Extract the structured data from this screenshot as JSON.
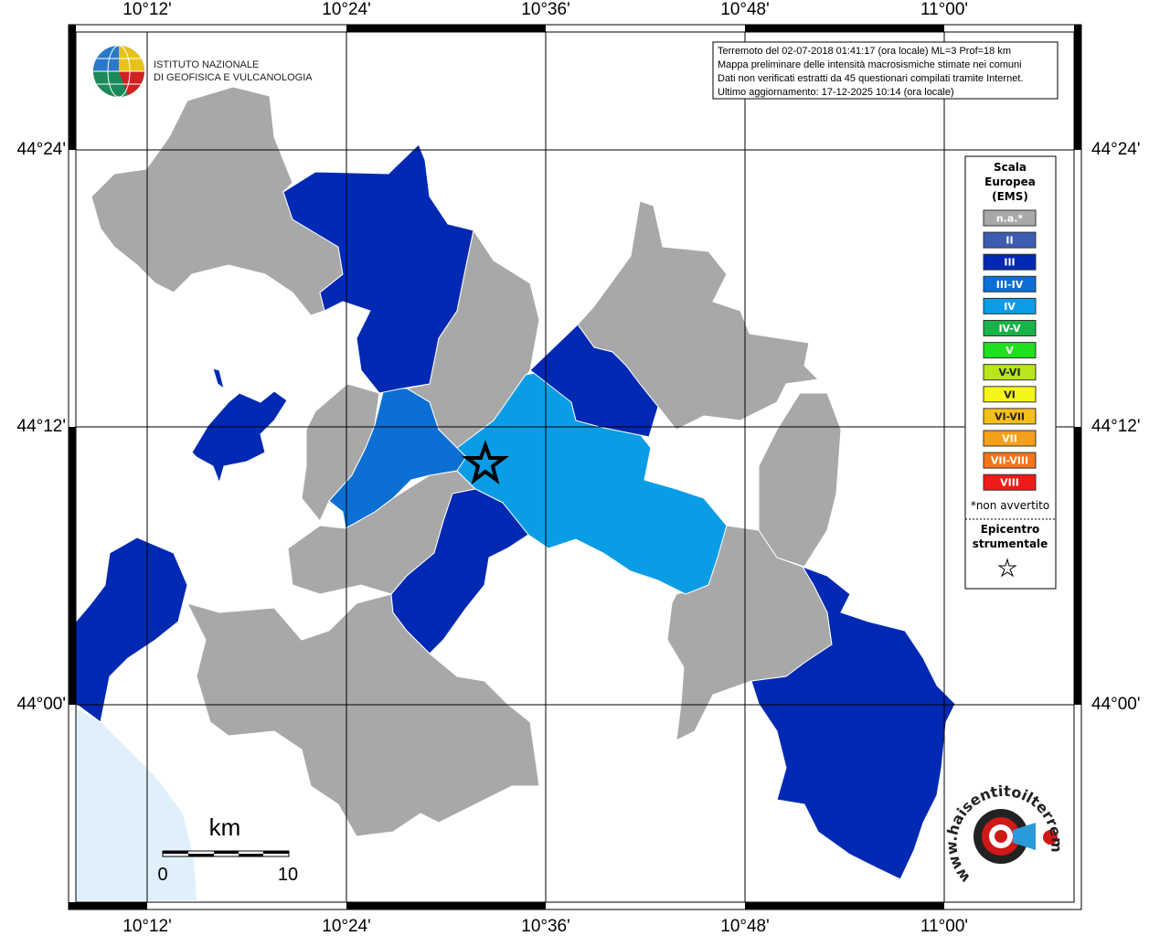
{
  "map": {
    "lon_labels": [
      "10°12'",
      "10°24'",
      "10°36'",
      "10°48'",
      "11°00'"
    ],
    "lat_labels": [
      "44°24'",
      "44°12'",
      "44°00'"
    ],
    "info_lines": [
      "Terremoto del 02-07-2018 01:41:17 (ora locale) ML=3 Prof=18 km",
      "Mappa preliminare delle intensità macrosismiche stimate nei comuni",
      "Dati non verificati estratti da 45 questionari compilati tramite Internet.",
      "Ultimo aggiornamento: 17-12-2025 10:14 (ora locale)"
    ],
    "logo": [
      "ISTITUTO NAZIONALE",
      "DI GEOFISICA E VULCANOLOGIA"
    ],
    "legend": {
      "title": [
        "Scala",
        "Europea",
        "(EMS)"
      ],
      "items": [
        {
          "label": "n.a.*",
          "color": "#a8a8a8"
        },
        {
          "label": "II",
          "color": "#3b5cb0"
        },
        {
          "label": "III",
          "color": "#0029b3"
        },
        {
          "label": "III-IV",
          "color": "#0b6fd4"
        },
        {
          "label": "IV",
          "color": "#0a9de6"
        },
        {
          "label": "IV-V",
          "color": "#19b34a"
        },
        {
          "label": "V",
          "color": "#1fe01f"
        },
        {
          "label": "V-VI",
          "color": "#b7e61a"
        },
        {
          "label": "VI",
          "color": "#f5f51a"
        },
        {
          "label": "VI-VII",
          "color": "#f5bf1a"
        },
        {
          "label": "VII",
          "color": "#f5a01a"
        },
        {
          "label": "VII-VIII",
          "color": "#f5741a"
        },
        {
          "label": "VIII",
          "color": "#f01a1a"
        }
      ],
      "note": "*non avvertito",
      "epicenter": [
        "Epicentro",
        "strumentale"
      ]
    },
    "scale": {
      "unit": "km",
      "labels": [
        "0",
        "10"
      ]
    },
    "site": "www.haisentitoilterremoto.it"
  }
}
